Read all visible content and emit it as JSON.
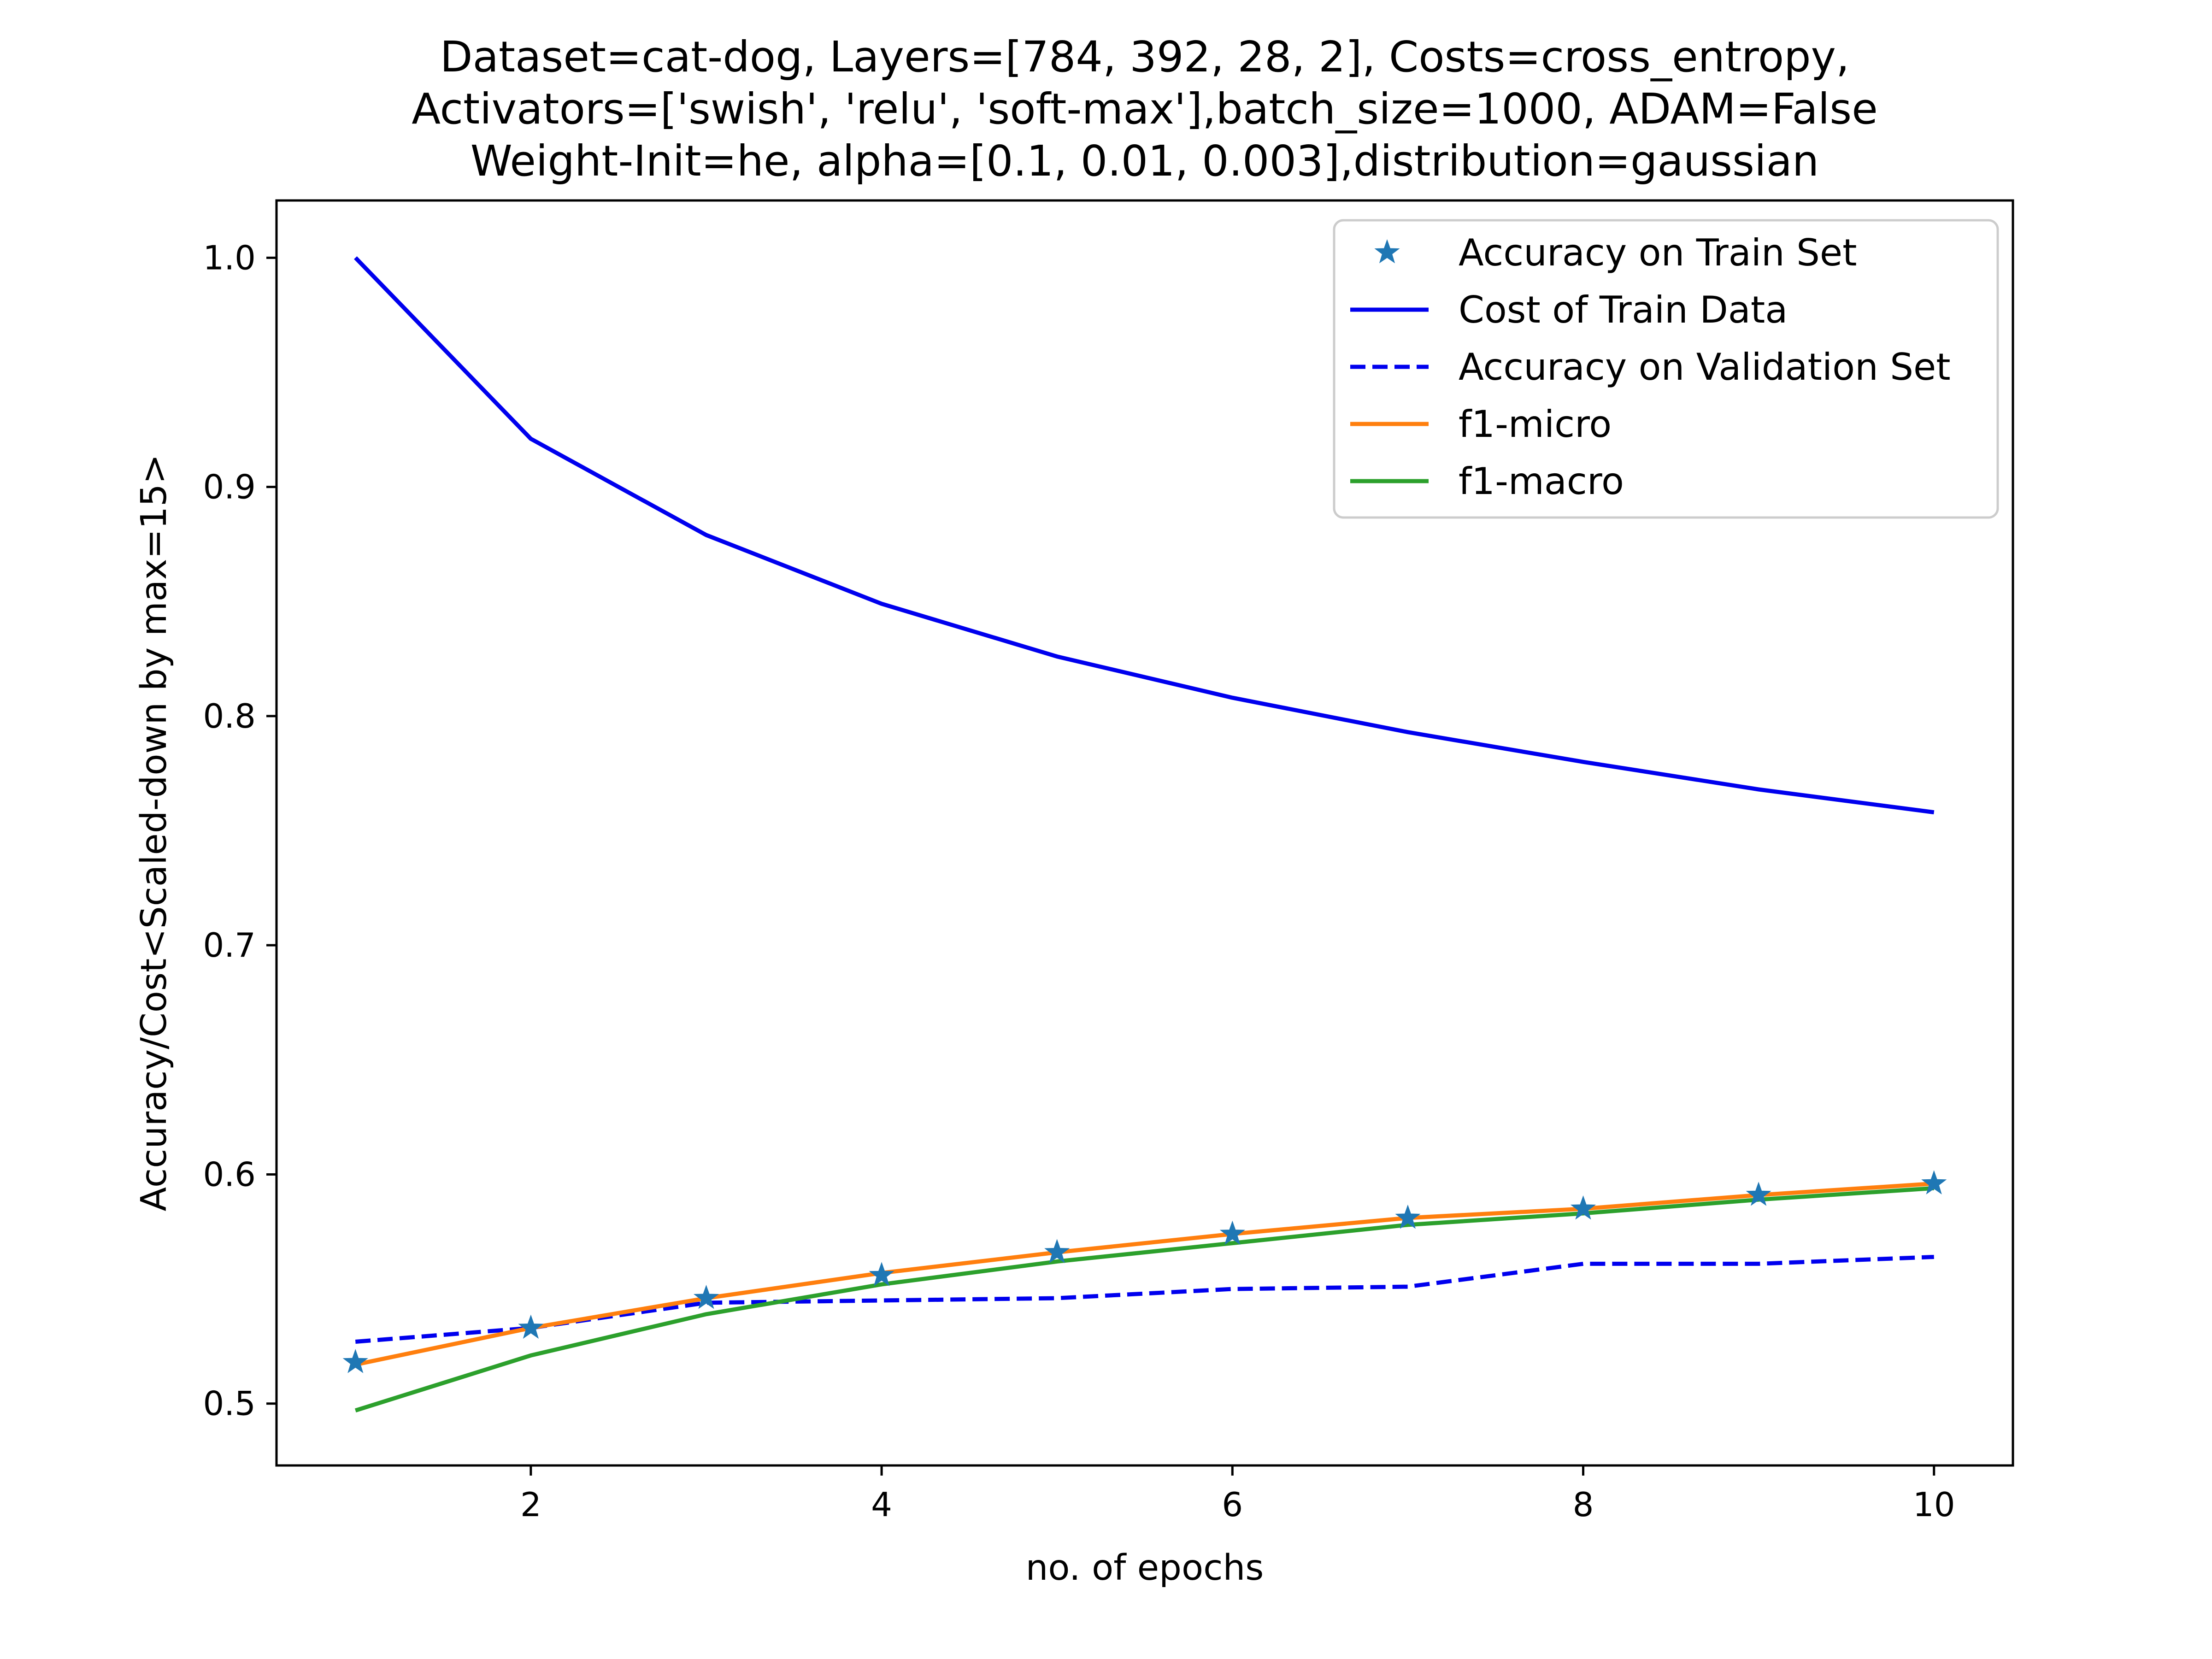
{
  "chart_data": {
    "type": "line",
    "title_lines": [
      "Dataset=cat-dog, Layers=[784, 392, 28, 2], Costs=cross_entropy,",
      "Activators=['swish', 'relu', 'soft-max'],batch_size=1000, ADAM=False",
      "Weight-Init=he, alpha=[0.1, 0.01, 0.003],distribution=gaussian"
    ],
    "xlabel": "no. of epochs",
    "ylabel": "Accuracy/Cost<Scaled-down by max=15>",
    "xlim": [
      0.55,
      10.45
    ],
    "ylim": [
      0.473,
      1.025
    ],
    "xticks": [
      2,
      4,
      6,
      8,
      10
    ],
    "xtick_labels": [
      "2",
      "4",
      "6",
      "8",
      "10"
    ],
    "yticks": [
      0.5,
      0.6,
      0.7,
      0.8,
      0.9,
      1.0
    ],
    "ytick_labels": [
      "0.5",
      "0.6",
      "0.7",
      "0.8",
      "0.9",
      "1.0"
    ],
    "grid": false,
    "legend_position": "top-right",
    "x": [
      1,
      2,
      3,
      4,
      5,
      6,
      7,
      8,
      9,
      10
    ],
    "series": [
      {
        "name": "Accuracy on Train Set",
        "style": "star-markers",
        "color": "#1f77b4",
        "values": [
          0.518,
          0.533,
          0.546,
          0.556,
          0.566,
          0.574,
          0.581,
          0.585,
          0.591,
          0.596
        ]
      },
      {
        "name": "Cost of Train Data",
        "style": "solid",
        "color": "#0000ee",
        "values": [
          1.0,
          0.921,
          0.879,
          0.849,
          0.826,
          0.808,
          0.793,
          0.78,
          0.768,
          0.758
        ]
      },
      {
        "name": "Accuracy on Validation Set",
        "style": "dashed",
        "color": "#0000ee",
        "values": [
          0.527,
          0.533,
          0.544,
          0.545,
          0.546,
          0.55,
          0.551,
          0.561,
          0.561,
          0.564
        ]
      },
      {
        "name": "f1-micro",
        "style": "solid",
        "color": "#ff7f0e",
        "values": [
          0.517,
          0.533,
          0.546,
          0.557,
          0.566,
          0.574,
          0.581,
          0.585,
          0.591,
          0.596
        ]
      },
      {
        "name": "f1-macro",
        "style": "solid",
        "color": "#2ca02c",
        "values": [
          0.497,
          0.521,
          0.539,
          0.552,
          0.562,
          0.57,
          0.578,
          0.583,
          0.589,
          0.594
        ]
      }
    ]
  }
}
